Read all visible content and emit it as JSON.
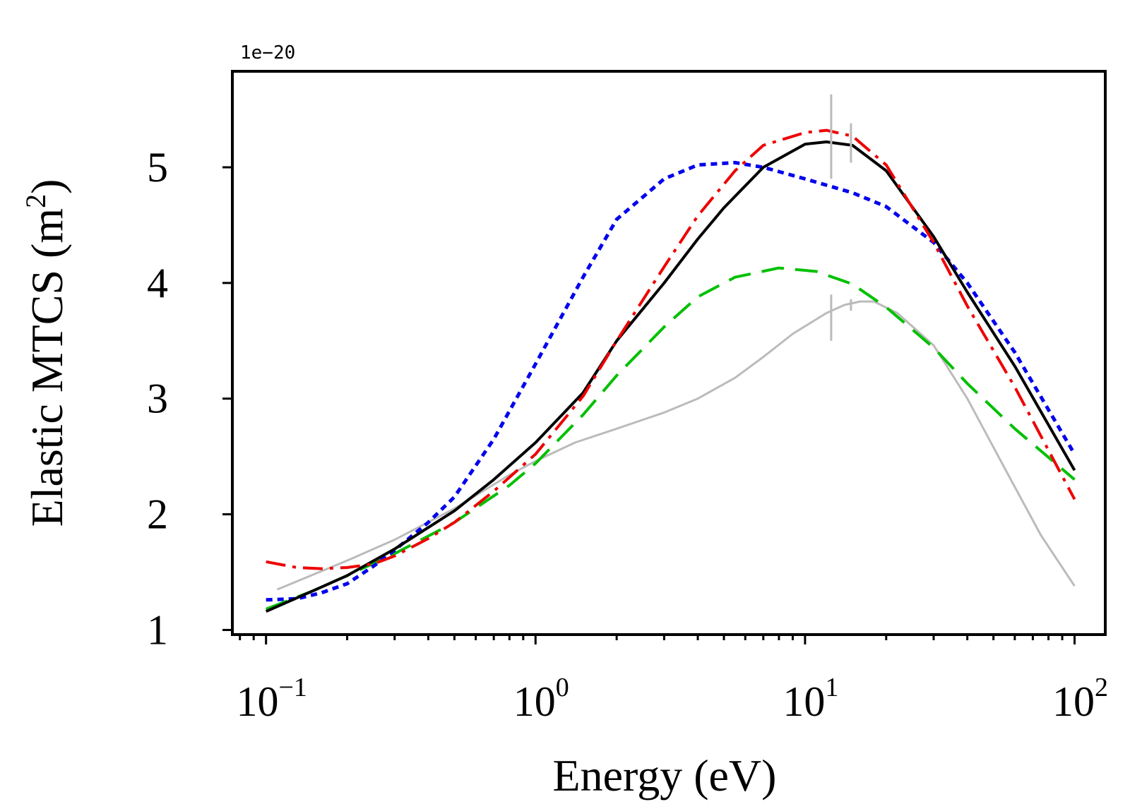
{
  "chart_data": {
    "type": "line",
    "xscale": "log",
    "xlim": [
      0.075,
      130
    ],
    "ylim": [
      9.6e-21,
      5.83e-20
    ],
    "offset_label": "1e−20",
    "xlabel": "Energy (eV)",
    "ylabel": "Elastic MTCS (m²)",
    "ylabel_parts": {
      "main": "Elastic MTCS (m",
      "sup": "2",
      "tail": ")"
    },
    "x_major_ticks": [
      {
        "value": 0.1,
        "base": "10",
        "exp": "−1"
      },
      {
        "value": 1,
        "base": "10",
        "exp": "0"
      },
      {
        "value": 10,
        "base": "10",
        "exp": "1"
      },
      {
        "value": 100,
        "base": "10",
        "exp": "2"
      }
    ],
    "y_ticks": [
      {
        "value": 1e-20,
        "label": "1"
      },
      {
        "value": 2e-20,
        "label": "2"
      },
      {
        "value": 3e-20,
        "label": "3"
      },
      {
        "value": 4e-20,
        "label": "4"
      },
      {
        "value": 5e-20,
        "label": "5"
      }
    ],
    "series": [
      {
        "color": "#bbbbbb",
        "style": "solid",
        "width": 3,
        "x": [
          0.11,
          0.2,
          0.3,
          0.5,
          0.8,
          1.0,
          1.4,
          2.0,
          3.0,
          4.0,
          5.5,
          7.0,
          9.0,
          12.0,
          14.0,
          16.0,
          18.0,
          22.0,
          30.0,
          40.0,
          55.0,
          75.0,
          100.0
        ],
        "y": [
          1.35e-20,
          1.6e-20,
          1.78e-20,
          2.05e-20,
          2.34e-20,
          2.46e-20,
          2.62e-20,
          2.74e-20,
          2.88e-20,
          3e-20,
          3.18e-20,
          3.36e-20,
          3.56e-20,
          3.74e-20,
          3.81e-20,
          3.84e-20,
          3.84e-20,
          3.74e-20,
          3.46e-20,
          3e-20,
          2.4e-20,
          1.82e-20,
          1.38e-20
        ]
      },
      {
        "color": "#00c000",
        "style": "dashed",
        "width": 4,
        "x": [
          0.1,
          0.15,
          0.2,
          0.3,
          0.5,
          0.8,
          1.0,
          1.5,
          2.0,
          3.0,
          4.0,
          5.5,
          8.0,
          11.0,
          15.0,
          20.0,
          30.0,
          40.0,
          60.0,
          100.0
        ],
        "y": [
          1.18e-20,
          1.34e-20,
          1.47e-20,
          1.66e-20,
          1.93e-20,
          2.25e-20,
          2.44e-20,
          2.86e-20,
          3.2e-20,
          3.62e-20,
          3.88e-20,
          4.05e-20,
          4.13e-20,
          4.1e-20,
          3.99e-20,
          3.79e-20,
          3.44e-20,
          3.13e-20,
          2.74e-20,
          2.3e-20
        ]
      },
      {
        "color": "#0000ee",
        "style": "dotted",
        "width": 5,
        "x": [
          0.1,
          0.13,
          0.16,
          0.2,
          0.25,
          0.3,
          0.4,
          0.5,
          0.7,
          1.0,
          1.5,
          2.0,
          3.0,
          4.0,
          5.5,
          7.0,
          10.0,
          15.0,
          20.0,
          30.0,
          40.0,
          60.0,
          100.0
        ],
        "y": [
          1.26e-20,
          1.27e-20,
          1.32e-20,
          1.4e-20,
          1.55e-20,
          1.69e-20,
          1.93e-20,
          2.15e-20,
          2.65e-20,
          3.3e-20,
          4.05e-20,
          4.55e-20,
          4.9e-20,
          5.02e-20,
          5.04e-20,
          5e-20,
          4.9e-20,
          4.78e-20,
          4.66e-20,
          4.35e-20,
          4e-20,
          3.4e-20,
          2.52e-20
        ]
      },
      {
        "color": "#000000",
        "style": "solid",
        "width": 4,
        "x": [
          0.1,
          0.15,
          0.2,
          0.3,
          0.5,
          0.7,
          1.0,
          1.5,
          2.0,
          3.0,
          4.0,
          5.0,
          7.0,
          10.0,
          12.0,
          15.0,
          20.0,
          30.0,
          40.0,
          60.0,
          100.0
        ],
        "y": [
          1.16e-20,
          1.34e-20,
          1.47e-20,
          1.7e-20,
          2.03e-20,
          2.3e-20,
          2.62e-20,
          3.05e-20,
          3.5e-20,
          4e-20,
          4.38e-20,
          4.65e-20,
          5e-20,
          5.2e-20,
          5.22e-20,
          5.19e-20,
          4.97e-20,
          4.4e-20,
          3.92e-20,
          3.28e-20,
          2.38e-20
        ]
      },
      {
        "color": "#ee0000",
        "style": "dashdot",
        "width": 4,
        "x": [
          0.1,
          0.13,
          0.16,
          0.2,
          0.25,
          0.3,
          0.4,
          0.5,
          0.7,
          1.0,
          1.5,
          2.0,
          3.0,
          4.0,
          5.5,
          7.0,
          10.0,
          12.0,
          15.0,
          20.0,
          30.0,
          40.0,
          60.0,
          100.0
        ],
        "y": [
          1.59e-20,
          1.54e-20,
          1.53e-20,
          1.54e-20,
          1.57e-20,
          1.64e-20,
          1.79e-20,
          1.93e-20,
          2.2e-20,
          2.52e-20,
          3.02e-20,
          3.5e-20,
          4.14e-20,
          4.58e-20,
          4.97e-20,
          5.19e-20,
          5.3e-20,
          5.32e-20,
          5.27e-20,
          5.02e-20,
          4.35e-20,
          3.8e-20,
          3.1e-20,
          2.13e-20
        ]
      }
    ],
    "markers": [
      {
        "x": 12.5,
        "y0": 3.5e-20,
        "y1": 3.9e-20
      },
      {
        "x": 14.8,
        "y0": 3.76e-20,
        "y1": 3.86e-20
      },
      {
        "x": 12.5,
        "y0": 4.9e-20,
        "y1": 5.63e-20
      },
      {
        "x": 14.8,
        "y0": 5.04e-20,
        "y1": 5.38e-20
      }
    ],
    "legend": "none",
    "grid": false
  }
}
